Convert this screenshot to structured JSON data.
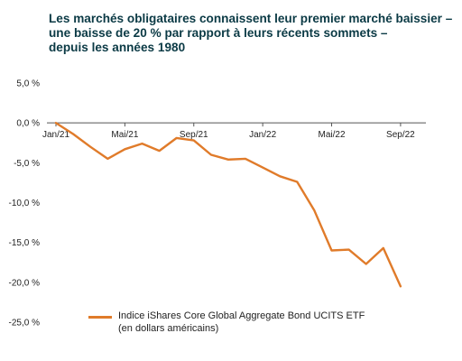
{
  "title_lines": [
    "Les marchés obligataires connaissent leur premier marché baissier –",
    "une baisse de 20 % par rapport à leurs récents sommets –",
    "depuis les années 1980"
  ],
  "legend": {
    "lines": [
      "Indice iShares Core Global Aggregate Bond UCITS ETF",
      "(en dollars américains)"
    ]
  },
  "colors": {
    "series": "#e07b2a",
    "title": "#0b3a45",
    "axis": "#555555"
  },
  "chart_data": {
    "type": "line",
    "ylim": [
      -25,
      5
    ],
    "y_ticks": [
      5,
      0,
      -5,
      -10,
      -15,
      -20,
      -25
    ],
    "y_tick_labels": [
      "5,0 %",
      "0,0 %",
      "-5,0 %",
      "-10,0 %",
      "-15,0 %",
      "-20,0 %",
      "-25,0 %"
    ],
    "x_range": [
      "2021-01",
      "2022-10"
    ],
    "x_tick_labels": [
      "Jan/21",
      "Mai/21",
      "Sep/21",
      "Jan/22",
      "Mai/22",
      "Sep/22"
    ],
    "x_tick_dates": [
      "2021-01",
      "2021-05",
      "2021-09",
      "2022-01",
      "2022-05",
      "2022-09"
    ],
    "series": [
      {
        "name": "Indice iShares Core Global Aggregate Bond UCITS ETF (en dollars américains)",
        "points": [
          [
            "2021-01-01",
            0.0
          ],
          [
            "2021-02-01",
            -1.4
          ],
          [
            "2021-03-01",
            -3.0
          ],
          [
            "2021-04-01",
            -4.5
          ],
          [
            "2021-05-01",
            -3.3
          ],
          [
            "2021-06-01",
            -2.6
          ],
          [
            "2021-07-01",
            -3.5
          ],
          [
            "2021-08-01",
            -1.9
          ],
          [
            "2021-09-01",
            -2.2
          ],
          [
            "2021-10-01",
            -4.0
          ],
          [
            "2021-11-01",
            -4.6
          ],
          [
            "2021-12-01",
            -4.5
          ],
          [
            "2022-01-01",
            -5.6
          ],
          [
            "2022-02-01",
            -6.7
          ],
          [
            "2022-03-01",
            -7.4
          ],
          [
            "2022-04-01",
            -11.0
          ],
          [
            "2022-05-01",
            -16.0
          ],
          [
            "2022-06-01",
            -15.9
          ],
          [
            "2022-07-01",
            -17.7
          ],
          [
            "2022-08-01",
            -15.7
          ],
          [
            "2022-09-01",
            -20.5
          ]
        ]
      }
    ]
  }
}
